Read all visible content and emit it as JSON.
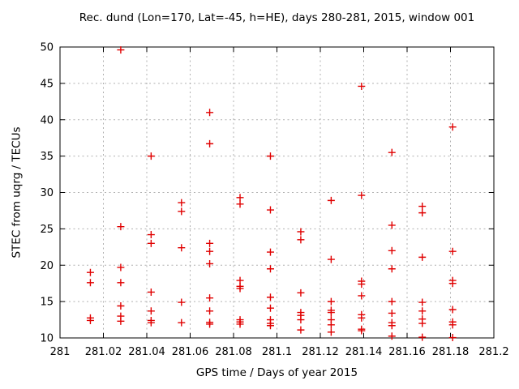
{
  "chart_data": {
    "type": "scatter",
    "title": "Rec. dund (Lon=170, Lat=-45, h=HE), days 280-281, 2015, window 001",
    "xlabel": "GPS time / Days of year 2015",
    "ylabel": "STEC from uqrg / TECUs",
    "xlim": [
      281,
      281.2
    ],
    "ylim": [
      10,
      50
    ],
    "xtick_labels": [
      "281",
      "281.02",
      "281.04",
      "281.06",
      "281.08",
      "281.1",
      "281.12",
      "281.14",
      "281.16",
      "281.18",
      "281.2"
    ],
    "xtick_values": [
      281,
      281.02,
      281.04,
      281.06,
      281.08,
      281.1,
      281.12,
      281.14,
      281.16,
      281.18,
      281.2
    ],
    "ytick_labels": [
      "10",
      "15",
      "20",
      "25",
      "30",
      "35",
      "40",
      "45",
      "50"
    ],
    "ytick_values": [
      10,
      15,
      20,
      25,
      30,
      35,
      40,
      45,
      50
    ],
    "grid": true,
    "grid_style": "dotted",
    "legend": null,
    "marker": {
      "shape": "plus",
      "color": "#e00000",
      "size": 9
    },
    "colors": {
      "border": "#000000",
      "grid": "#b0b0b0",
      "background": "#ffffff"
    },
    "points": [
      [
        281.014,
        19.0
      ],
      [
        281.014,
        17.6
      ],
      [
        281.014,
        12.75
      ],
      [
        281.014,
        12.4
      ],
      [
        281.028,
        49.6
      ],
      [
        281.028,
        25.3
      ],
      [
        281.028,
        19.7
      ],
      [
        281.028,
        17.6
      ],
      [
        281.028,
        14.4
      ],
      [
        281.028,
        13.0
      ],
      [
        281.028,
        12.3
      ],
      [
        281.042,
        35.0
      ],
      [
        281.042,
        24.2
      ],
      [
        281.042,
        23.0
      ],
      [
        281.042,
        16.3
      ],
      [
        281.042,
        13.7
      ],
      [
        281.042,
        12.4
      ],
      [
        281.042,
        12.1
      ],
      [
        281.056,
        28.6
      ],
      [
        281.056,
        27.4
      ],
      [
        281.056,
        22.4
      ],
      [
        281.056,
        14.9
      ],
      [
        281.056,
        12.1
      ],
      [
        281.069,
        41.0
      ],
      [
        281.069,
        36.7
      ],
      [
        281.069,
        23.0
      ],
      [
        281.069,
        21.9
      ],
      [
        281.069,
        20.2
      ],
      [
        281.069,
        15.5
      ],
      [
        281.069,
        13.7
      ],
      [
        281.069,
        12.15
      ],
      [
        281.069,
        11.9
      ],
      [
        281.083,
        29.3
      ],
      [
        281.083,
        28.4
      ],
      [
        281.083,
        17.9
      ],
      [
        281.083,
        17.1
      ],
      [
        281.083,
        16.8
      ],
      [
        281.083,
        12.5
      ],
      [
        281.083,
        12.2
      ],
      [
        281.083,
        11.9
      ],
      [
        281.097,
        35.0
      ],
      [
        281.097,
        27.6
      ],
      [
        281.097,
        21.8
      ],
      [
        281.097,
        19.5
      ],
      [
        281.097,
        15.6
      ],
      [
        281.097,
        14.1
      ],
      [
        281.097,
        12.5
      ],
      [
        281.097,
        12.0
      ],
      [
        281.097,
        11.7
      ],
      [
        281.111,
        24.6
      ],
      [
        281.111,
        23.5
      ],
      [
        281.111,
        16.2
      ],
      [
        281.111,
        13.5
      ],
      [
        281.111,
        13.1
      ],
      [
        281.111,
        12.5
      ],
      [
        281.111,
        11.1
      ],
      [
        281.125,
        28.9
      ],
      [
        281.125,
        20.8
      ],
      [
        281.125,
        15.0
      ],
      [
        281.125,
        13.8
      ],
      [
        281.125,
        13.5
      ],
      [
        281.125,
        12.5
      ],
      [
        281.125,
        11.8
      ],
      [
        281.125,
        10.8
      ],
      [
        281.139,
        44.6
      ],
      [
        281.139,
        29.6
      ],
      [
        281.139,
        17.8
      ],
      [
        281.139,
        17.4
      ],
      [
        281.139,
        15.8
      ],
      [
        281.139,
        13.2
      ],
      [
        281.139,
        12.75
      ],
      [
        281.139,
        11.2
      ],
      [
        281.139,
        11.0
      ],
      [
        281.153,
        35.5
      ],
      [
        281.153,
        25.5
      ],
      [
        281.153,
        22.0
      ],
      [
        281.153,
        19.5
      ],
      [
        281.153,
        15.0
      ],
      [
        281.153,
        13.4
      ],
      [
        281.153,
        12.1
      ],
      [
        281.153,
        11.7
      ],
      [
        281.153,
        10.25
      ],
      [
        281.167,
        28.1
      ],
      [
        281.167,
        27.2
      ],
      [
        281.167,
        21.1
      ],
      [
        281.167,
        14.9
      ],
      [
        281.167,
        13.7
      ],
      [
        281.167,
        12.6
      ],
      [
        281.167,
        12.0
      ],
      [
        281.167,
        10.1
      ],
      [
        281.181,
        39.0
      ],
      [
        281.181,
        21.9
      ],
      [
        281.181,
        17.9
      ],
      [
        281.181,
        17.5
      ],
      [
        281.181,
        13.9
      ],
      [
        281.181,
        12.2
      ],
      [
        281.181,
        11.8
      ],
      [
        281.181,
        10.05
      ]
    ]
  }
}
